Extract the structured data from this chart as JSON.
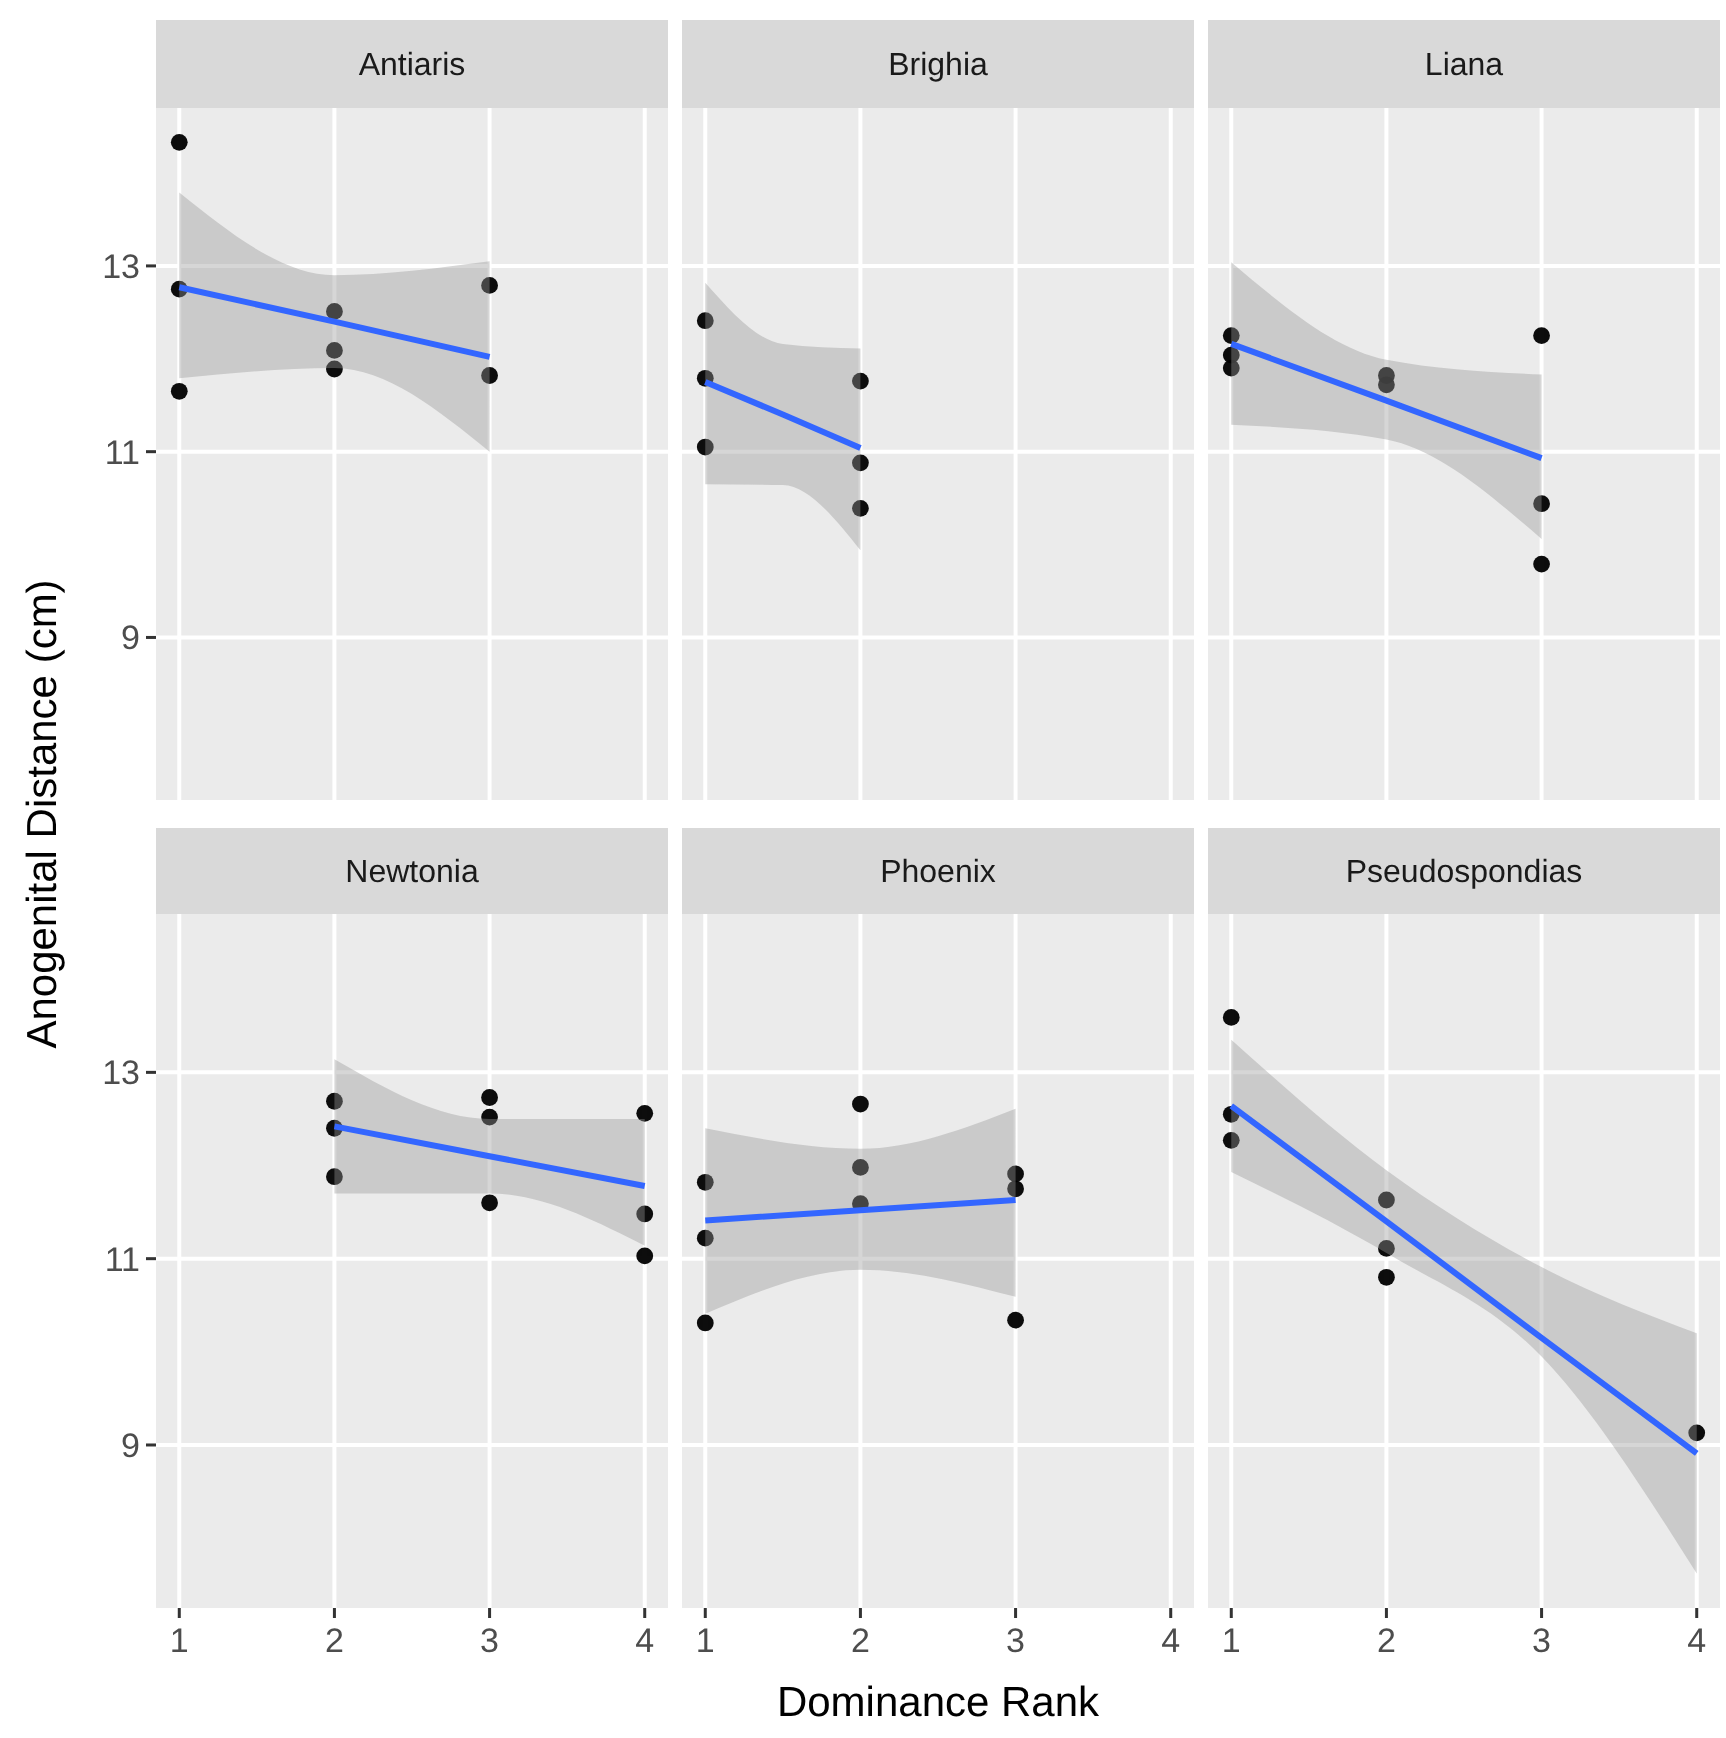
{
  "chart_data": [
    {
      "type": "scatter",
      "title": "Antiaris",
      "ylabel": "Anogenital Distance (cm)",
      "xlim": [
        0.85,
        4.15
      ],
      "ylim": [
        7.25,
        14.7
      ],
      "xticks": [
        1,
        2,
        3,
        4
      ],
      "yticks": [
        9,
        11,
        13
      ],
      "grid": true,
      "tick_labels": "y",
      "series": [
        {
          "type": "scatter",
          "color": "#000000",
          "x": [
            1,
            1,
            1,
            2,
            2,
            2,
            3,
            3
          ],
          "values": [
            14.33,
            12.75,
            11.65,
            12.51,
            12.09,
            11.89,
            12.79,
            11.82
          ]
        },
        {
          "type": "line",
          "color": "#3366ff",
          "x": [
            1,
            2,
            3
          ],
          "values": [
            12.77,
            12.4,
            12.02
          ],
          "lower": [
            11.79,
            11.9,
            11.0
          ],
          "upper": [
            13.79,
            12.9,
            13.05
          ]
        }
      ]
    },
    {
      "type": "scatter",
      "title": "Brighia",
      "xlim": [
        0.85,
        4.15
      ],
      "ylim": [
        7.25,
        14.7
      ],
      "xticks": [
        1,
        2,
        3,
        4
      ],
      "yticks": [
        9,
        11,
        13
      ],
      "grid": true,
      "tick_labels": false,
      "series": [
        {
          "type": "scatter",
          "color": "#000000",
          "x": [
            1,
            1,
            1,
            2,
            2,
            2
          ],
          "values": [
            12.41,
            11.79,
            11.05,
            11.76,
            10.88,
            10.39
          ]
        },
        {
          "type": "line",
          "color": "#3366ff",
          "x": [
            1,
            1.5,
            2
          ],
          "values": [
            11.75,
            11.4,
            11.04
          ],
          "lower": [
            10.65,
            10.64,
            9.94
          ],
          "upper": [
            12.82,
            12.16,
            12.11
          ]
        }
      ]
    },
    {
      "type": "scatter",
      "title": "Liana",
      "xlim": [
        0.85,
        4.15
      ],
      "ylim": [
        7.25,
        14.7
      ],
      "xticks": [
        1,
        2,
        3,
        4
      ],
      "yticks": [
        9,
        11,
        13
      ],
      "grid": true,
      "tick_labels": false,
      "series": [
        {
          "type": "scatter",
          "color": "#000000",
          "x": [
            1,
            1,
            1,
            2,
            2,
            3,
            3,
            3
          ],
          "values": [
            12.25,
            12.04,
            11.9,
            11.82,
            11.72,
            12.25,
            10.44,
            9.79
          ]
        },
        {
          "type": "line",
          "color": "#3366ff",
          "x": [
            1,
            2,
            3
          ],
          "values": [
            12.16,
            11.55,
            10.93
          ],
          "lower": [
            11.29,
            11.13,
            10.06
          ],
          "upper": [
            13.04,
            11.99,
            11.83
          ]
        }
      ]
    },
    {
      "type": "scatter",
      "title": "Newtonia",
      "xlim": [
        0.85,
        4.15
      ],
      "ylim": [
        7.25,
        14.7
      ],
      "xticks": [
        1,
        2,
        3,
        4
      ],
      "yticks": [
        9,
        11,
        13
      ],
      "grid": true,
      "series": [
        {
          "type": "scatter",
          "color": "#000000",
          "x": [
            2,
            2,
            2,
            3,
            3,
            3,
            4,
            4,
            4
          ],
          "values": [
            12.69,
            12.4,
            11.88,
            12.73,
            12.52,
            11.6,
            12.56,
            11.48,
            11.03
          ]
        },
        {
          "type": "line",
          "color": "#3366ff",
          "x": [
            2,
            3,
            4
          ],
          "values": [
            12.42,
            12.1,
            11.78
          ],
          "lower": [
            11.7,
            11.7,
            11.14
          ],
          "upper": [
            13.14,
            12.5,
            12.5
          ]
        }
      ]
    },
    {
      "type": "scatter",
      "title": "Phoenix",
      "xlabel": "Dominance Rank",
      "xlim": [
        0.85,
        4.15
      ],
      "ylim": [
        7.25,
        14.7
      ],
      "xticks": [
        1,
        2,
        3,
        4
      ],
      "yticks": [
        9,
        11,
        13
      ],
      "grid": true,
      "tick_labels": "x",
      "series": [
        {
          "type": "scatter",
          "color": "#000000",
          "x": [
            1,
            1,
            1,
            2,
            2,
            2,
            3,
            3,
            3
          ],
          "values": [
            11.82,
            11.22,
            10.31,
            12.66,
            11.98,
            11.59,
            11.91,
            11.75,
            10.34
          ]
        },
        {
          "type": "line",
          "color": "#3366ff",
          "x": [
            1,
            2,
            3
          ],
          "values": [
            11.41,
            11.52,
            11.63
          ],
          "lower": [
            10.41,
            10.88,
            10.59
          ],
          "upper": [
            12.4,
            12.18,
            12.61
          ]
        }
      ]
    },
    {
      "type": "scatter",
      "title": "Pseudospondias",
      "xlim": [
        0.85,
        4.15
      ],
      "ylim": [
        7.25,
        14.7
      ],
      "xticks": [
        1,
        2,
        3,
        4
      ],
      "yticks": [
        9,
        11,
        13
      ],
      "grid": true,
      "tick_labels": "x",
      "series": [
        {
          "type": "scatter",
          "color": "#000000",
          "x": [
            1,
            1,
            1,
            2,
            2,
            2,
            4
          ],
          "values": [
            13.59,
            12.55,
            12.27,
            11.63,
            11.11,
            10.8,
            9.13
          ]
        },
        {
          "type": "line",
          "color": "#3366ff",
          "x": [
            1,
            2,
            3,
            4
          ],
          "values": [
            12.64,
            11.4,
            10.15,
            8.91
          ],
          "lower": [
            11.93,
            11.06,
            9.95,
            7.62
          ],
          "upper": [
            13.35,
            11.95,
            10.91,
            10.2
          ]
        }
      ]
    }
  ]
}
